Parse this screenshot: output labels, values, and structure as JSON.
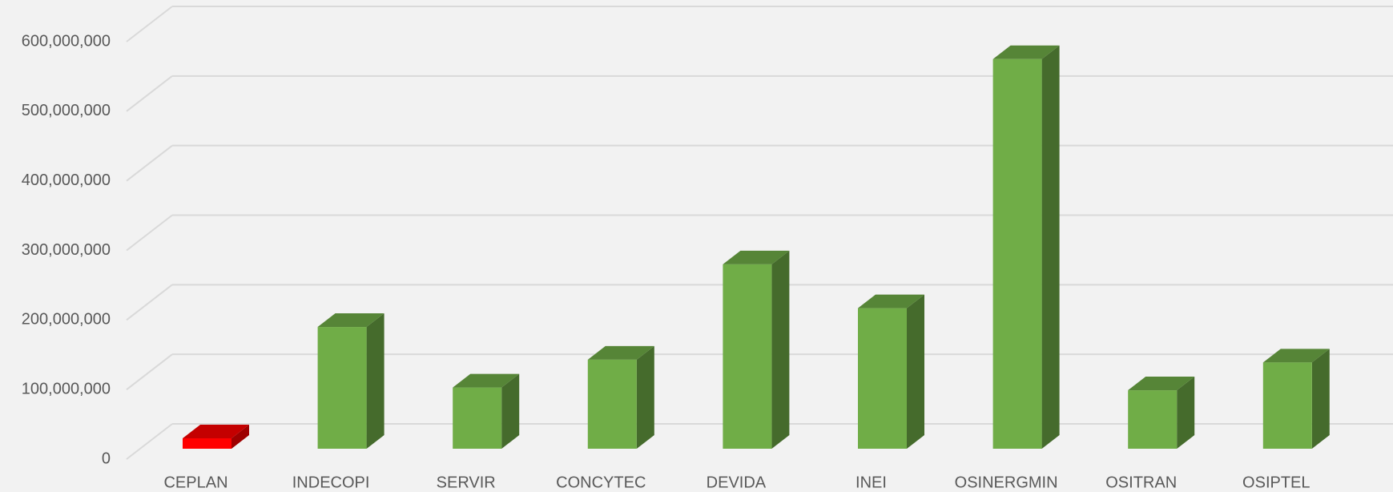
{
  "chart_data": {
    "type": "bar3d",
    "categories": [
      "CEPLAN",
      "INDECOPI",
      "SERVIR",
      "CONCYTEC",
      "DEVIDA",
      "INEI",
      "OSINERGMIN",
      "OSITRAN",
      "OSIPTEL"
    ],
    "values": [
      15000000,
      175000000,
      88000000,
      128000000,
      265000000,
      202000000,
      560000000,
      84000000,
      124000000
    ],
    "colors": [
      "#ff0000",
      "#70ad47",
      "#70ad47",
      "#70ad47",
      "#70ad47",
      "#70ad47",
      "#70ad47",
      "#70ad47",
      "#70ad47"
    ],
    "ylim": [
      0,
      600000000
    ],
    "yticks": [
      0,
      {
        "value": 100000000,
        "label": "100,000,000"
      },
      {
        "value": 200000000,
        "label": "200,000,000"
      },
      {
        "value": 300000000,
        "label": "300,000,000"
      },
      {
        "value": 400000000,
        "label": "400,000,000"
      },
      {
        "value": 500000000,
        "label": "500,000,000"
      },
      {
        "value": 600000000,
        "label": "600,000,000"
      }
    ],
    "grid": true
  }
}
